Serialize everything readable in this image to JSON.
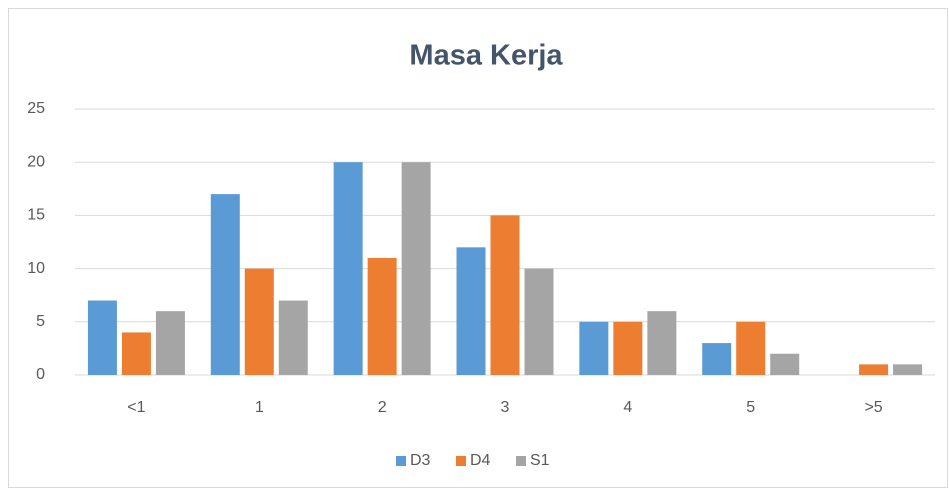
{
  "chart_data": {
    "type": "bar",
    "title": "Masa Kerja",
    "categories": [
      "<1",
      "1",
      "2",
      "3",
      "4",
      "5",
      ">5"
    ],
    "series": [
      {
        "name": "D3",
        "color": "#5b9bd5",
        "values": [
          7,
          17,
          20,
          12,
          5,
          3,
          0
        ]
      },
      {
        "name": "D4",
        "color": "#ed7d31",
        "values": [
          4,
          10,
          11,
          15,
          5,
          5,
          1
        ]
      },
      {
        "name": "S1",
        "color": "#a5a5a5",
        "values": [
          6,
          7,
          20,
          10,
          6,
          2,
          1
        ]
      }
    ],
    "ylim": [
      0,
      25
    ],
    "yticks": [
      0,
      5,
      10,
      15,
      20,
      25
    ],
    "grid": true,
    "legend": "bottom"
  }
}
